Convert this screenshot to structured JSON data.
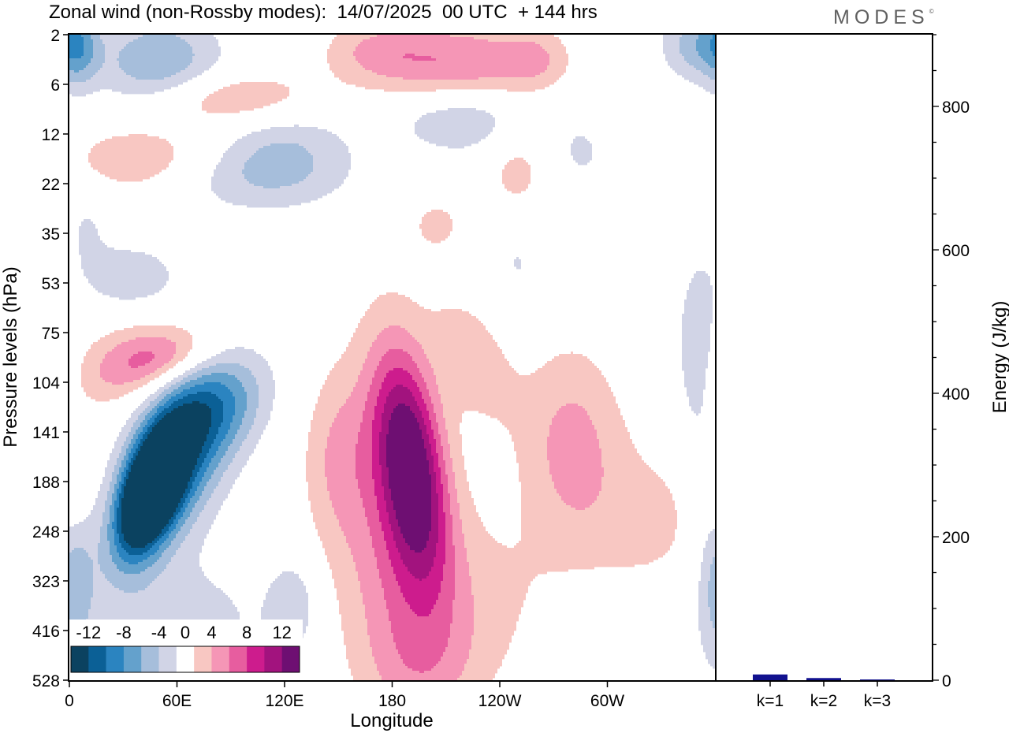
{
  "title": "Zonal wind (non-Rossby modes):  14/07/2025  00 UTC  + 144 hrs",
  "brand": "MODES",
  "brand_mark": "©",
  "colors": {
    "neg": [
      "#0b4260",
      "#0b6096",
      "#2b84c0",
      "#64a1cc",
      "#a6bedb",
      "#d1d4e6"
    ],
    "zero": "#ffffff",
    "pos": [
      "#f8c7c2",
      "#f596b6",
      "#e75d9f",
      "#cd1c8d",
      "#a2137e",
      "#6e0f72"
    ],
    "bar": "#12128f"
  },
  "chart_data": [
    {
      "type": "heatmap",
      "title": "Zonal wind (non-Rossby modes):  14/07/2025  00 UTC  + 144 hrs",
      "xlabel": "Longitude",
      "ylabel": "Pressure levels (hPa)",
      "x_ticks": [
        "0",
        "60E",
        "120E",
        "180",
        "120W",
        "60W"
      ],
      "x_tick_degrees": [
        0,
        60,
        120,
        180,
        240,
        300
      ],
      "xlim": [
        0,
        360
      ],
      "y_ticks": [
        "2",
        "6",
        "12",
        "22",
        "35",
        "53",
        "75",
        "104",
        "141",
        "188",
        "248",
        "323",
        "416",
        "528"
      ],
      "y_scale": "categorical-levels",
      "colorbar": {
        "labels": [
          "-12",
          "-8",
          "-4",
          "0",
          "4",
          "8",
          "12"
        ],
        "levels": [
          -14,
          -12,
          -10,
          -8,
          -6,
          -4,
          -2,
          2,
          4,
          6,
          8,
          10,
          12,
          14
        ],
        "placement": "bottom-left"
      },
      "blobs": [
        {
          "lon": 45,
          "lev": 9.2,
          "sl": 13,
          "sv": 0.75,
          "amp": -20,
          "rot": 0.6
        },
        {
          "lon": 60,
          "lev": 8.6,
          "sl": 22,
          "sv": 1.1,
          "amp": -9,
          "rot": 0.5
        },
        {
          "lon": 80,
          "lev": 7.5,
          "sl": 22,
          "sv": 0.7,
          "amp": -6,
          "rot": 0.3
        },
        {
          "lon": 2,
          "lev": 10.8,
          "sl": 9,
          "sv": 1.3,
          "amp": -5
        },
        {
          "lon": 350,
          "lev": 6.5,
          "sl": 8,
          "sv": 1.3,
          "amp": -4
        },
        {
          "lon": 60,
          "lev": 11.8,
          "sl": 40,
          "sv": 0.9,
          "amp": -3
        },
        {
          "lon": 125,
          "lev": 11.5,
          "sl": 10,
          "sv": 0.7,
          "amp": -3.5
        },
        {
          "lon": 290,
          "lev": 12.5,
          "sl": 18,
          "sv": 0.8,
          "amp": -2.5
        },
        {
          "lon": 35,
          "lev": 4.9,
          "sl": 20,
          "sv": 0.5,
          "amp": -3.5
        },
        {
          "lon": 50,
          "lev": 0.6,
          "sl": 25,
          "sv": 0.7,
          "amp": -6
        },
        {
          "lon": 5,
          "lev": 0.2,
          "sl": 8,
          "sv": 0.6,
          "amp": -5
        },
        {
          "lon": 350,
          "lev": 0.2,
          "sl": 14,
          "sv": 0.5,
          "amp": -5
        },
        {
          "lon": 220,
          "lev": 1.7,
          "sl": 28,
          "sv": 0.5,
          "amp": -4.5,
          "rot": -0.1
        },
        {
          "lon": 120,
          "lev": 2.2,
          "sl": 28,
          "sv": 0.7,
          "amp": -3.5,
          "rot": -0.1
        },
        {
          "lon": 100,
          "lev": 2.9,
          "sl": 35,
          "sv": 0.5,
          "amp": -3
        },
        {
          "lon": 285,
          "lev": 2.4,
          "sl": 14,
          "sv": 0.6,
          "amp": -2.2
        },
        {
          "lon": 340,
          "lev": 2.2,
          "sl": 14,
          "sv": 0.5,
          "amp": -2.2
        },
        {
          "lon": 250,
          "lev": 4.6,
          "sl": 8,
          "sv": 0.5,
          "amp": -2.2
        },
        {
          "lon": 10,
          "lev": 3.8,
          "sl": 10,
          "sv": 0.6,
          "amp": -2
        },
        {
          "lon": 190,
          "lev": 8.6,
          "sl": 14,
          "sv": 1.5,
          "amp": 13,
          "rot": -0.4
        },
        {
          "lon": 180,
          "lev": 10.0,
          "sl": 25,
          "sv": 2.3,
          "amp": 4,
          "rot": -0.3
        },
        {
          "lon": 215,
          "lev": 11.5,
          "sl": 45,
          "sv": 1.4,
          "amp": 2.7
        },
        {
          "lon": 225,
          "lev": 6.5,
          "sl": 18,
          "sv": 0.9,
          "amp": 3,
          "rot": -0.5
        },
        {
          "lon": 280,
          "lev": 8.2,
          "sl": 20,
          "sv": 1.4,
          "amp": 4.5
        },
        {
          "lon": 325,
          "lev": 9.8,
          "sl": 30,
          "sv": 1.2,
          "amp": 2.4
        },
        {
          "lon": 150,
          "lev": 8.5,
          "sl": 14,
          "sv": 1.2,
          "amp": 3
        },
        {
          "lon": 30,
          "lev": 6.6,
          "sl": 22,
          "sv": 0.6,
          "amp": 4,
          "rot": 0.4
        },
        {
          "lon": 55,
          "lev": 6.5,
          "sl": 20,
          "sv": 0.4,
          "amp": 4.5,
          "rot": 0.4
        },
        {
          "lon": 90,
          "lev": 1.3,
          "sl": 35,
          "sv": 0.4,
          "amp": 5,
          "rot": 0.05
        },
        {
          "lon": 40,
          "lev": 2.5,
          "sl": 30,
          "sv": 0.5,
          "amp": 4,
          "rot": 0.05
        },
        {
          "lon": 215,
          "lev": 0.6,
          "sl": 35,
          "sv": 0.6,
          "amp": 6,
          "rot": 0.05
        },
        {
          "lon": 170,
          "lev": 0.3,
          "sl": 20,
          "sv": 0.4,
          "amp": 3
        },
        {
          "lon": 250,
          "lev": 2.6,
          "sl": 14,
          "sv": 0.7,
          "amp": 3
        },
        {
          "lon": 260,
          "lev": 0.5,
          "sl": 12,
          "sv": 0.4,
          "amp": 2.6
        },
        {
          "lon": 2,
          "lev": 9.2,
          "sl": 6,
          "sv": 0.6,
          "amp": 2.5
        },
        {
          "lon": 205,
          "lev": 3.8,
          "sl": 14,
          "sv": 0.5,
          "amp": 2.3
        },
        {
          "lon": 195,
          "lev": 12.8,
          "sl": 22,
          "sv": 0.8,
          "amp": 2.2
        }
      ]
    },
    {
      "type": "bar",
      "categories": [
        "k=1",
        "k=2",
        "k=3"
      ],
      "values": [
        8,
        3,
        1
      ],
      "ylabel": "Energy (J/kg)",
      "ylim": [
        0,
        900
      ],
      "y_ticks": [
        0,
        200,
        400,
        600,
        800
      ],
      "y_minor_step": 50
    }
  ]
}
